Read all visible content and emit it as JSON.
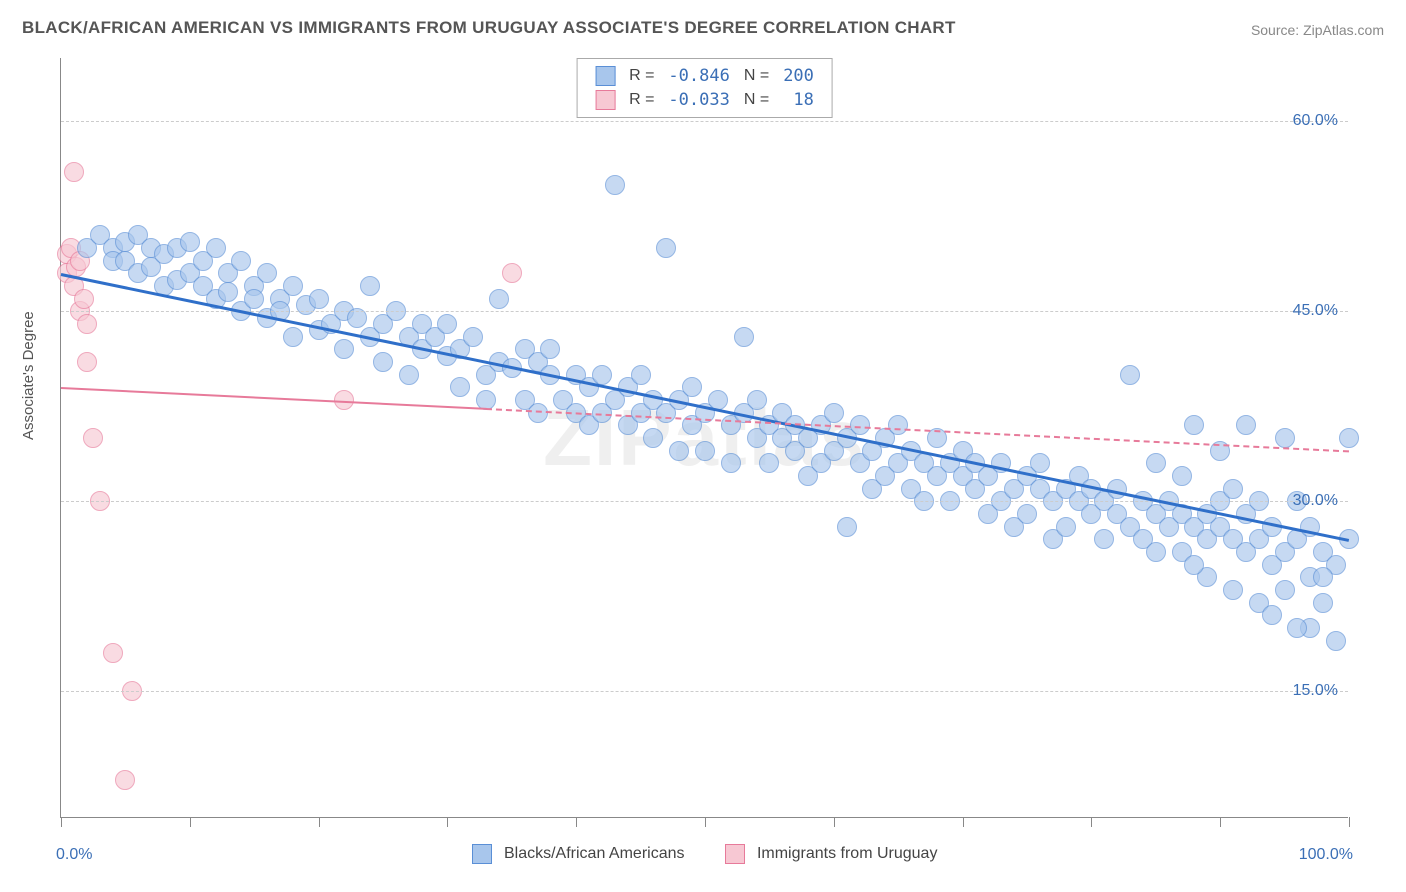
{
  "title": "BLACK/AFRICAN AMERICAN VS IMMIGRANTS FROM URUGUAY ASSOCIATE'S DEGREE CORRELATION CHART",
  "source": "Source: ZipAtlas.com",
  "watermark": "ZIPatlas",
  "ylabel": "Associate's Degree",
  "chart": {
    "type": "scatter",
    "xlim": [
      0,
      100
    ],
    "ylim": [
      5,
      65
    ],
    "y_gridlines": [
      15,
      30,
      45,
      60
    ],
    "y_tick_labels": [
      "15.0%",
      "30.0%",
      "45.0%",
      "60.0%"
    ],
    "x_ticks": [
      0,
      10,
      20,
      30,
      40,
      50,
      60,
      70,
      80,
      90,
      100
    ],
    "x_min_label": "0.0%",
    "x_max_label": "100.0%",
    "grid_color": "#cccccc",
    "axis_color": "#888888",
    "tick_label_color": "#3b6fb6",
    "background_color": "#ffffff"
  },
  "series": [
    {
      "name": "Blacks/African Americans",
      "marker_fill": "#a8c6ec",
      "marker_stroke": "#5a8fd6",
      "marker_opacity": 0.65,
      "marker_radius": 10,
      "R_label": "R =",
      "R": "-0.846",
      "N_label": "N =",
      "N": "200",
      "trend": {
        "x1": 0,
        "y1": 48,
        "x2": 100,
        "y2": 27,
        "color": "#2f6fc9",
        "width": 3,
        "solid_until_x": 100
      },
      "points": [
        [
          2,
          50
        ],
        [
          3,
          51
        ],
        [
          4,
          50
        ],
        [
          4,
          49
        ],
        [
          5,
          50.5
        ],
        [
          5,
          49
        ],
        [
          6,
          51
        ],
        [
          6,
          48
        ],
        [
          7,
          50
        ],
        [
          7,
          48.5
        ],
        [
          8,
          49.5
        ],
        [
          8,
          47
        ],
        [
          9,
          50
        ],
        [
          9,
          47.5
        ],
        [
          10,
          50.5
        ],
        [
          10,
          48
        ],
        [
          11,
          49
        ],
        [
          11,
          47
        ],
        [
          12,
          50
        ],
        [
          12,
          46
        ],
        [
          13,
          48
        ],
        [
          13,
          46.5
        ],
        [
          14,
          49
        ],
        [
          14,
          45
        ],
        [
          15,
          47
        ],
        [
          15,
          46
        ],
        [
          16,
          48
        ],
        [
          16,
          44.5
        ],
        [
          17,
          46
        ],
        [
          17,
          45
        ],
        [
          18,
          47
        ],
        [
          18,
          43
        ],
        [
          19,
          45.5
        ],
        [
          20,
          46
        ],
        [
          20,
          43.5
        ],
        [
          21,
          44
        ],
        [
          22,
          45
        ],
        [
          22,
          42
        ],
        [
          23,
          44.5
        ],
        [
          24,
          43
        ],
        [
          24,
          47
        ],
        [
          25,
          44
        ],
        [
          25,
          41
        ],
        [
          26,
          45
        ],
        [
          27,
          43
        ],
        [
          27,
          40
        ],
        [
          28,
          44
        ],
        [
          28,
          42
        ],
        [
          29,
          43
        ],
        [
          30,
          41.5
        ],
        [
          30,
          44
        ],
        [
          31,
          42
        ],
        [
          31,
          39
        ],
        [
          32,
          43
        ],
        [
          33,
          40
        ],
        [
          33,
          38
        ],
        [
          34,
          41
        ],
        [
          34,
          46
        ],
        [
          35,
          40.5
        ],
        [
          36,
          42
        ],
        [
          36,
          38
        ],
        [
          37,
          41
        ],
        [
          37,
          37
        ],
        [
          38,
          40
        ],
        [
          38,
          42
        ],
        [
          39,
          38
        ],
        [
          40,
          40
        ],
        [
          40,
          37
        ],
        [
          41,
          39
        ],
        [
          41,
          36
        ],
        [
          42,
          40
        ],
        [
          42,
          37
        ],
        [
          43,
          38
        ],
        [
          43,
          55
        ],
        [
          44,
          39
        ],
        [
          44,
          36
        ],
        [
          45,
          37
        ],
        [
          45,
          40
        ],
        [
          46,
          38
        ],
        [
          46,
          35
        ],
        [
          47,
          37
        ],
        [
          47,
          50
        ],
        [
          48,
          38
        ],
        [
          48,
          34
        ],
        [
          49,
          36
        ],
        [
          49,
          39
        ],
        [
          50,
          37
        ],
        [
          50,
          34
        ],
        [
          51,
          38
        ],
        [
          52,
          36
        ],
        [
          52,
          33
        ],
        [
          53,
          37
        ],
        [
          53,
          43
        ],
        [
          54,
          35
        ],
        [
          54,
          38
        ],
        [
          55,
          36
        ],
        [
          55,
          33
        ],
        [
          56,
          35
        ],
        [
          56,
          37
        ],
        [
          57,
          34
        ],
        [
          57,
          36
        ],
        [
          58,
          35
        ],
        [
          58,
          32
        ],
        [
          59,
          36
        ],
        [
          59,
          33
        ],
        [
          60,
          34
        ],
        [
          60,
          37
        ],
        [
          61,
          35
        ],
        [
          61,
          28
        ],
        [
          62,
          33
        ],
        [
          62,
          36
        ],
        [
          63,
          34
        ],
        [
          63,
          31
        ],
        [
          64,
          35
        ],
        [
          64,
          32
        ],
        [
          65,
          33
        ],
        [
          65,
          36
        ],
        [
          66,
          34
        ],
        [
          66,
          31
        ],
        [
          67,
          33
        ],
        [
          67,
          30
        ],
        [
          68,
          32
        ],
        [
          68,
          35
        ],
        [
          69,
          33
        ],
        [
          69,
          30
        ],
        [
          70,
          32
        ],
        [
          70,
          34
        ],
        [
          71,
          31
        ],
        [
          71,
          33
        ],
        [
          72,
          32
        ],
        [
          72,
          29
        ],
        [
          73,
          33
        ],
        [
          73,
          30
        ],
        [
          74,
          31
        ],
        [
          74,
          28
        ],
        [
          75,
          32
        ],
        [
          75,
          29
        ],
        [
          76,
          31
        ],
        [
          76,
          33
        ],
        [
          77,
          30
        ],
        [
          77,
          27
        ],
        [
          78,
          31
        ],
        [
          78,
          28
        ],
        [
          79,
          30
        ],
        [
          79,
          32
        ],
        [
          80,
          29
        ],
        [
          80,
          31
        ],
        [
          81,
          30
        ],
        [
          81,
          27
        ],
        [
          82,
          29
        ],
        [
          82,
          31
        ],
        [
          83,
          28
        ],
        [
          83,
          40
        ],
        [
          84,
          30
        ],
        [
          84,
          27
        ],
        [
          85,
          29
        ],
        [
          85,
          26
        ],
        [
          86,
          28
        ],
        [
          86,
          30
        ],
        [
          87,
          29
        ],
        [
          87,
          26
        ],
        [
          88,
          28
        ],
        [
          88,
          36
        ],
        [
          89,
          27
        ],
        [
          89,
          24
        ],
        [
          90,
          28
        ],
        [
          90,
          30
        ],
        [
          91,
          27
        ],
        [
          91,
          23
        ],
        [
          92,
          26
        ],
        [
          92,
          29
        ],
        [
          93,
          27
        ],
        [
          93,
          22
        ],
        [
          94,
          28
        ],
        [
          94,
          25
        ],
        [
          95,
          26
        ],
        [
          95,
          23
        ],
        [
          96,
          27
        ],
        [
          96,
          30
        ],
        [
          97,
          24
        ],
        [
          97,
          20
        ],
        [
          98,
          26
        ],
        [
          98,
          22
        ],
        [
          99,
          25
        ],
        [
          99,
          19
        ],
        [
          100,
          27
        ],
        [
          100,
          35
        ],
        [
          95,
          35
        ],
        [
          90,
          34
        ],
        [
          85,
          33
        ],
        [
          88,
          25
        ],
        [
          92,
          36
        ],
        [
          96,
          20
        ],
        [
          93,
          30
        ],
        [
          97,
          28
        ],
        [
          91,
          31
        ],
        [
          89,
          29
        ],
        [
          87,
          32
        ],
        [
          94,
          21
        ],
        [
          98,
          24
        ]
      ]
    },
    {
      "name": "Immigrants from Uruguay",
      "marker_fill": "#f7c8d3",
      "marker_stroke": "#e77a9a",
      "marker_opacity": 0.65,
      "marker_radius": 10,
      "R_label": "R =",
      "R": "-0.033",
      "N_label": "N =",
      "N": "18",
      "trend": {
        "x1": 0,
        "y1": 39,
        "x2": 100,
        "y2": 34,
        "color": "#e77a9a",
        "width": 2,
        "solid_until_x": 33
      },
      "points": [
        [
          0.5,
          48
        ],
        [
          0.5,
          49.5
        ],
        [
          0.8,
          50
        ],
        [
          1,
          56
        ],
        [
          1,
          47
        ],
        [
          1.2,
          48.5
        ],
        [
          1.5,
          45
        ],
        [
          1.5,
          49
        ],
        [
          1.8,
          46
        ],
        [
          2,
          44
        ],
        [
          2,
          41
        ],
        [
          2.5,
          35
        ],
        [
          3,
          30
        ],
        [
          4,
          18
        ],
        [
          5,
          8
        ],
        [
          5.5,
          15
        ],
        [
          22,
          38
        ],
        [
          35,
          48
        ]
      ]
    }
  ]
}
